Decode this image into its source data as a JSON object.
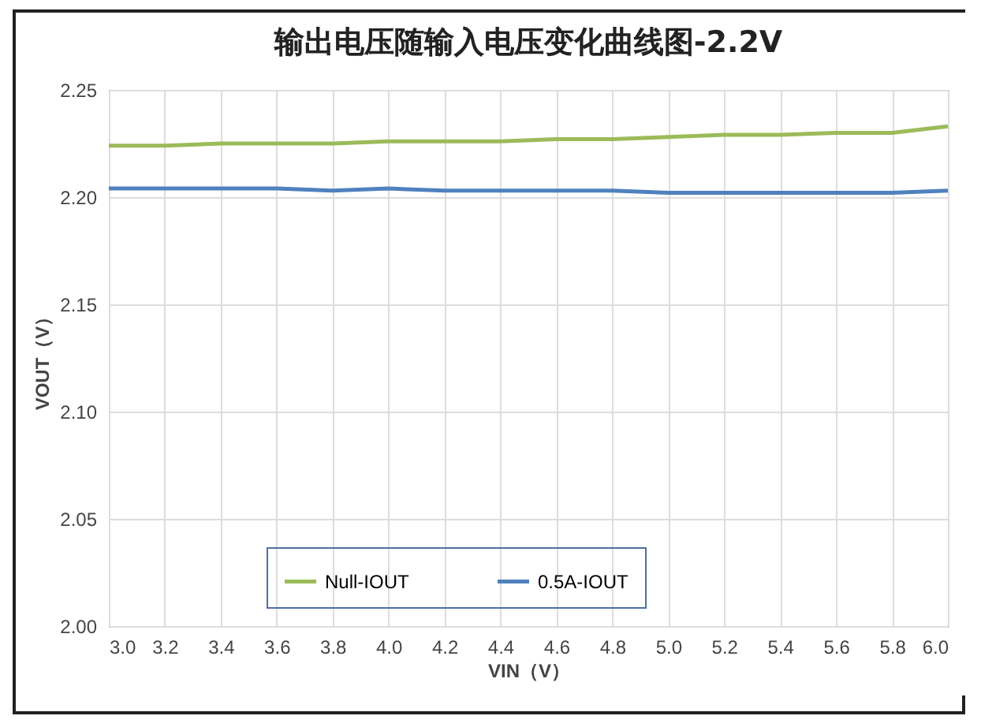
{
  "chart_data": {
    "type": "line",
    "title": "输出电压随输入电压变化曲线图-2.2V",
    "xlabel": "VIN（V）",
    "ylabel": "VOUT（V）",
    "x": [
      3.0,
      3.2,
      3.4,
      3.6,
      3.8,
      4.0,
      4.2,
      4.4,
      4.6,
      4.8,
      5.0,
      5.2,
      5.4,
      5.6,
      5.8,
      6.0
    ],
    "series": [
      {
        "name": "Null-IOUT",
        "color": "#9bbb59",
        "values": [
          2.224,
          2.224,
          2.225,
          2.225,
          2.225,
          2.226,
          2.226,
          2.226,
          2.227,
          2.227,
          2.228,
          2.229,
          2.229,
          2.23,
          2.23,
          2.233
        ]
      },
      {
        "name": "0.5A-IOUT",
        "color": "#4f81bd",
        "values": [
          2.204,
          2.204,
          2.204,
          2.204,
          2.203,
          2.204,
          2.203,
          2.203,
          2.203,
          2.203,
          2.202,
          2.202,
          2.202,
          2.202,
          2.202,
          2.203
        ]
      }
    ],
    "xlim": [
      3.0,
      6.0
    ],
    "xticks": [
      {
        "value": 3.0,
        "label": "3.0"
      },
      3.2,
      3.4,
      3.6,
      3.8,
      {
        "value": 4.0,
        "label": "4.0"
      },
      4.2,
      4.4,
      4.6,
      4.8,
      {
        "value": 5.0,
        "label": "5.0"
      },
      5.2,
      5.4,
      5.6,
      5.8,
      {
        "value": 6.0,
        "label": "6.0"
      }
    ],
    "ylim": [
      2.0,
      2.25
    ],
    "yticks": [
      {
        "value": 2.0,
        "label": "2.00"
      },
      2.05,
      {
        "value": 2.1,
        "label": "2.10"
      },
      2.15,
      {
        "value": 2.2,
        "label": "2.20"
      },
      2.25
    ],
    "grid": true,
    "legend": "bottom",
    "marker": "none",
    "line_style": "solid"
  }
}
